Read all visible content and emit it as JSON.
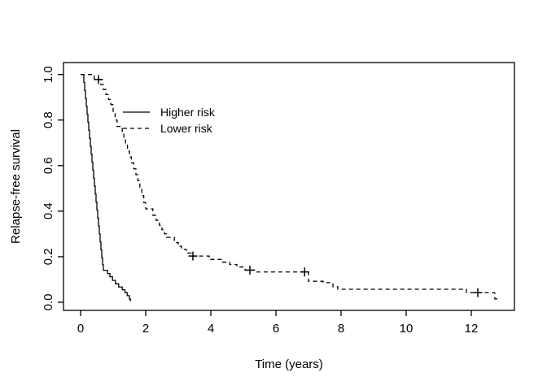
{
  "figure": {
    "background": "#ffffff",
    "line_color": "#000000"
  },
  "chart_data": {
    "type": "line",
    "subtype": "kaplan-meier-step",
    "title": "",
    "xlabel": "Time (years)",
    "ylabel": "Relapse-free survival",
    "xlim": [
      0,
      13.3
    ],
    "ylim": [
      0.0,
      1.0
    ],
    "grid": false,
    "legend_position": "upper-left-inside",
    "x_axis": {
      "label": "Time (years)",
      "ticks": [
        0,
        2,
        4,
        6,
        8,
        10,
        12
      ]
    },
    "y_axis": {
      "label": "Relapse-free survival",
      "ticks": [
        "0.0",
        "0.2",
        "0.4",
        "0.6",
        "0.8",
        "1.0"
      ]
    },
    "legend": [
      {
        "label": "Higher risk",
        "linestyle": "solid"
      },
      {
        "label": "Lower risk",
        "linestyle": "dashed"
      }
    ],
    "series": [
      {
        "name": "Higher risk",
        "linestyle": "solid",
        "points": [
          [
            0,
            1.0
          ],
          [
            0.1,
            0.965
          ],
          [
            0.125,
            0.93
          ],
          [
            0.15,
            0.895
          ],
          [
            0.175,
            0.86
          ],
          [
            0.2,
            0.825
          ],
          [
            0.225,
            0.79
          ],
          [
            0.25,
            0.755
          ],
          [
            0.275,
            0.72
          ],
          [
            0.3,
            0.685
          ],
          [
            0.325,
            0.65
          ],
          [
            0.35,
            0.615
          ],
          [
            0.375,
            0.58
          ],
          [
            0.4,
            0.545
          ],
          [
            0.425,
            0.51
          ],
          [
            0.45,
            0.475
          ],
          [
            0.475,
            0.44
          ],
          [
            0.5,
            0.405
          ],
          [
            0.525,
            0.37
          ],
          [
            0.55,
            0.335
          ],
          [
            0.575,
            0.3
          ],
          [
            0.6,
            0.265
          ],
          [
            0.625,
            0.23
          ],
          [
            0.65,
            0.195
          ],
          [
            0.675,
            0.165
          ],
          [
            0.7,
            0.14
          ],
          [
            0.83,
            0.126
          ],
          [
            0.9,
            0.112
          ],
          [
            0.98,
            0.096
          ],
          [
            1.07,
            0.081
          ],
          [
            1.17,
            0.067
          ],
          [
            1.28,
            0.055
          ],
          [
            1.36,
            0.043
          ],
          [
            1.43,
            0.029
          ],
          [
            1.5,
            0.014
          ],
          [
            1.53,
            0.007
          ],
          [
            1.55,
            0.007
          ]
        ],
        "censor_points": []
      },
      {
        "name": "Lower risk",
        "linestyle": "dashed",
        "points": [
          [
            0,
            1.0
          ],
          [
            0.42,
            0.978
          ],
          [
            0.62,
            0.956
          ],
          [
            0.7,
            0.934
          ],
          [
            0.78,
            0.912
          ],
          [
            0.86,
            0.89
          ],
          [
            0.93,
            0.868
          ],
          [
            1.0,
            0.835
          ],
          [
            1.06,
            0.8
          ],
          [
            1.12,
            0.772
          ],
          [
            1.28,
            0.745
          ],
          [
            1.33,
            0.718
          ],
          [
            1.38,
            0.69
          ],
          [
            1.44,
            0.664
          ],
          [
            1.5,
            0.638
          ],
          [
            1.56,
            0.612
          ],
          [
            1.63,
            0.586
          ],
          [
            1.7,
            0.56
          ],
          [
            1.76,
            0.534
          ],
          [
            1.82,
            0.5
          ],
          [
            1.88,
            0.468
          ],
          [
            1.94,
            0.438
          ],
          [
            2.0,
            0.41
          ],
          [
            2.22,
            0.382
          ],
          [
            2.32,
            0.36
          ],
          [
            2.42,
            0.338
          ],
          [
            2.5,
            0.318
          ],
          [
            2.58,
            0.3
          ],
          [
            2.64,
            0.285
          ],
          [
            2.88,
            0.262
          ],
          [
            3.0,
            0.246
          ],
          [
            3.1,
            0.232
          ],
          [
            3.25,
            0.216
          ],
          [
            3.4,
            0.203
          ],
          [
            3.95,
            0.188
          ],
          [
            4.32,
            0.176
          ],
          [
            4.58,
            0.166
          ],
          [
            4.8,
            0.155
          ],
          [
            5.05,
            0.141
          ],
          [
            5.35,
            0.133
          ],
          [
            7.0,
            0.092
          ],
          [
            7.45,
            0.086
          ],
          [
            7.75,
            0.068
          ],
          [
            7.9,
            0.057
          ],
          [
            11.85,
            0.042
          ],
          [
            12.72,
            0.015
          ],
          [
            12.85,
            0.015
          ]
        ],
        "censor_points": [
          [
            0.55,
            0.978
          ],
          [
            3.45,
            0.203
          ],
          [
            5.2,
            0.141
          ],
          [
            6.88,
            0.133
          ],
          [
            12.2,
            0.042
          ]
        ]
      }
    ]
  }
}
